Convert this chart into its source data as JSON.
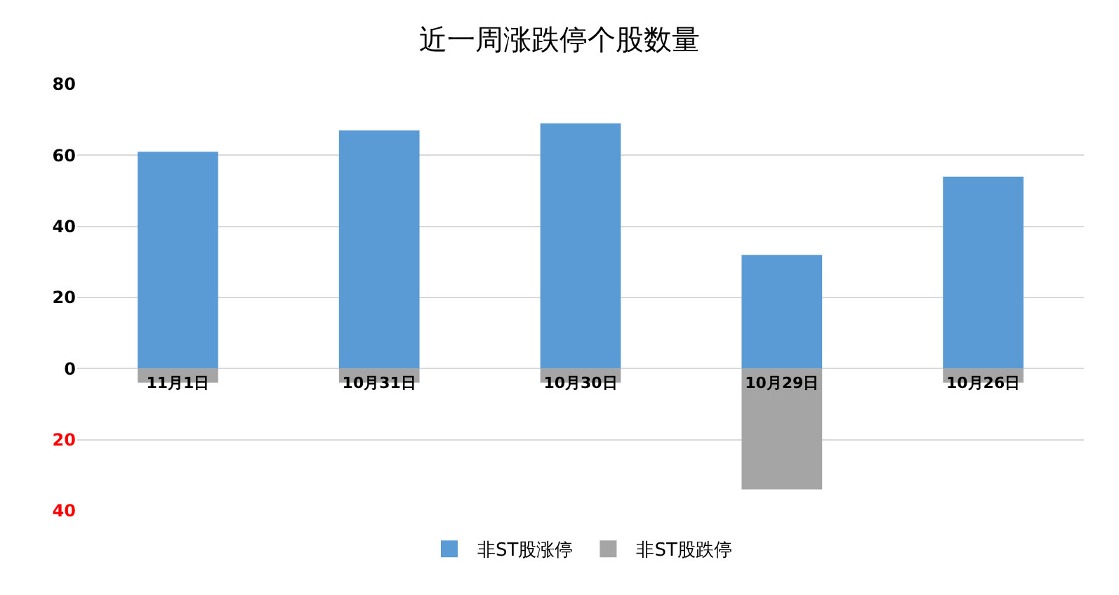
{
  "chart_data": {
    "type": "bar",
    "title": "近一周涨跌停个股数量",
    "categories": [
      "11月1日",
      "10月31日",
      "10月30日",
      "10月29日",
      "10月26日"
    ],
    "stacked": true,
    "series": [
      {
        "name": "非ST股涨停",
        "color": "#5b9bd5",
        "values": [
          61,
          67,
          69,
          32,
          54
        ]
      },
      {
        "name": "非ST股跌停",
        "color": "#a5a5a5",
        "values": [
          -4,
          -4,
          -4,
          -34,
          -4
        ]
      }
    ],
    "ylim": [
      -40,
      80
    ],
    "yticks": [
      {
        "value": -40,
        "label": "40"
      },
      {
        "value": -20,
        "label": "20"
      },
      0,
      20,
      40,
      60,
      80
    ],
    "grid": "y",
    "legend": "bottom"
  }
}
